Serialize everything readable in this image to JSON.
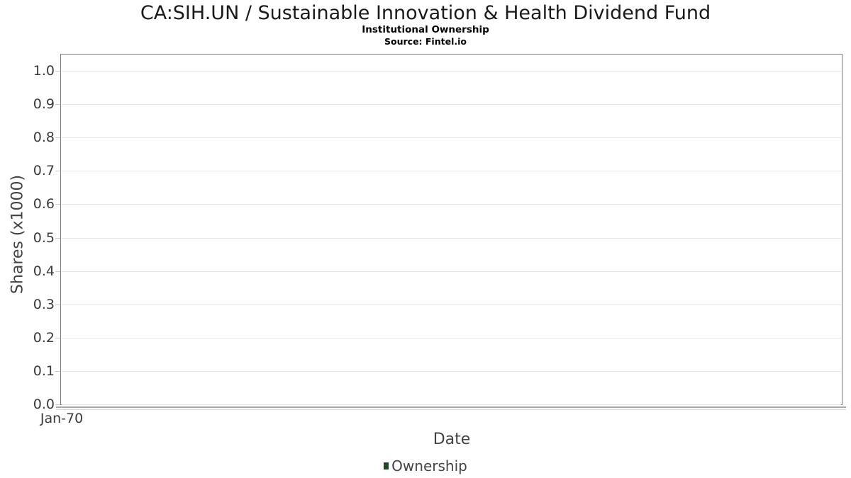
{
  "chart_data": {
    "type": "line",
    "title": "CA:SIH.UN / Sustainable Innovation & Health Dividend Fund",
    "subtitle": "Institutional Ownership",
    "source": "Source: Fintel.io",
    "xlabel": "Date",
    "ylabel": "Shares (x1000)",
    "xticks": [
      "Jan-70"
    ],
    "ytick_labels": [
      "0.0",
      "0.1",
      "0.2",
      "0.3",
      "0.4",
      "0.5",
      "0.6",
      "0.7",
      "0.8",
      "0.9",
      "1.0"
    ],
    "ylim": [
      0.0,
      1.05
    ],
    "grid": "horizontal",
    "legend_position": "bottom-center",
    "series": [
      {
        "name": "Ownership",
        "color": "#1d4a23",
        "x": [],
        "values": []
      }
    ],
    "palette": {
      "legend_green": "#1d4a23",
      "plot_border": "#7d7d7d",
      "gridline": "#e5e5e5",
      "tick_mark": "#c9c9c9",
      "axis_line": "#a9a9a9",
      "text_dark": "#1a1a1a",
      "text_axis": "#3a3a3a"
    }
  }
}
